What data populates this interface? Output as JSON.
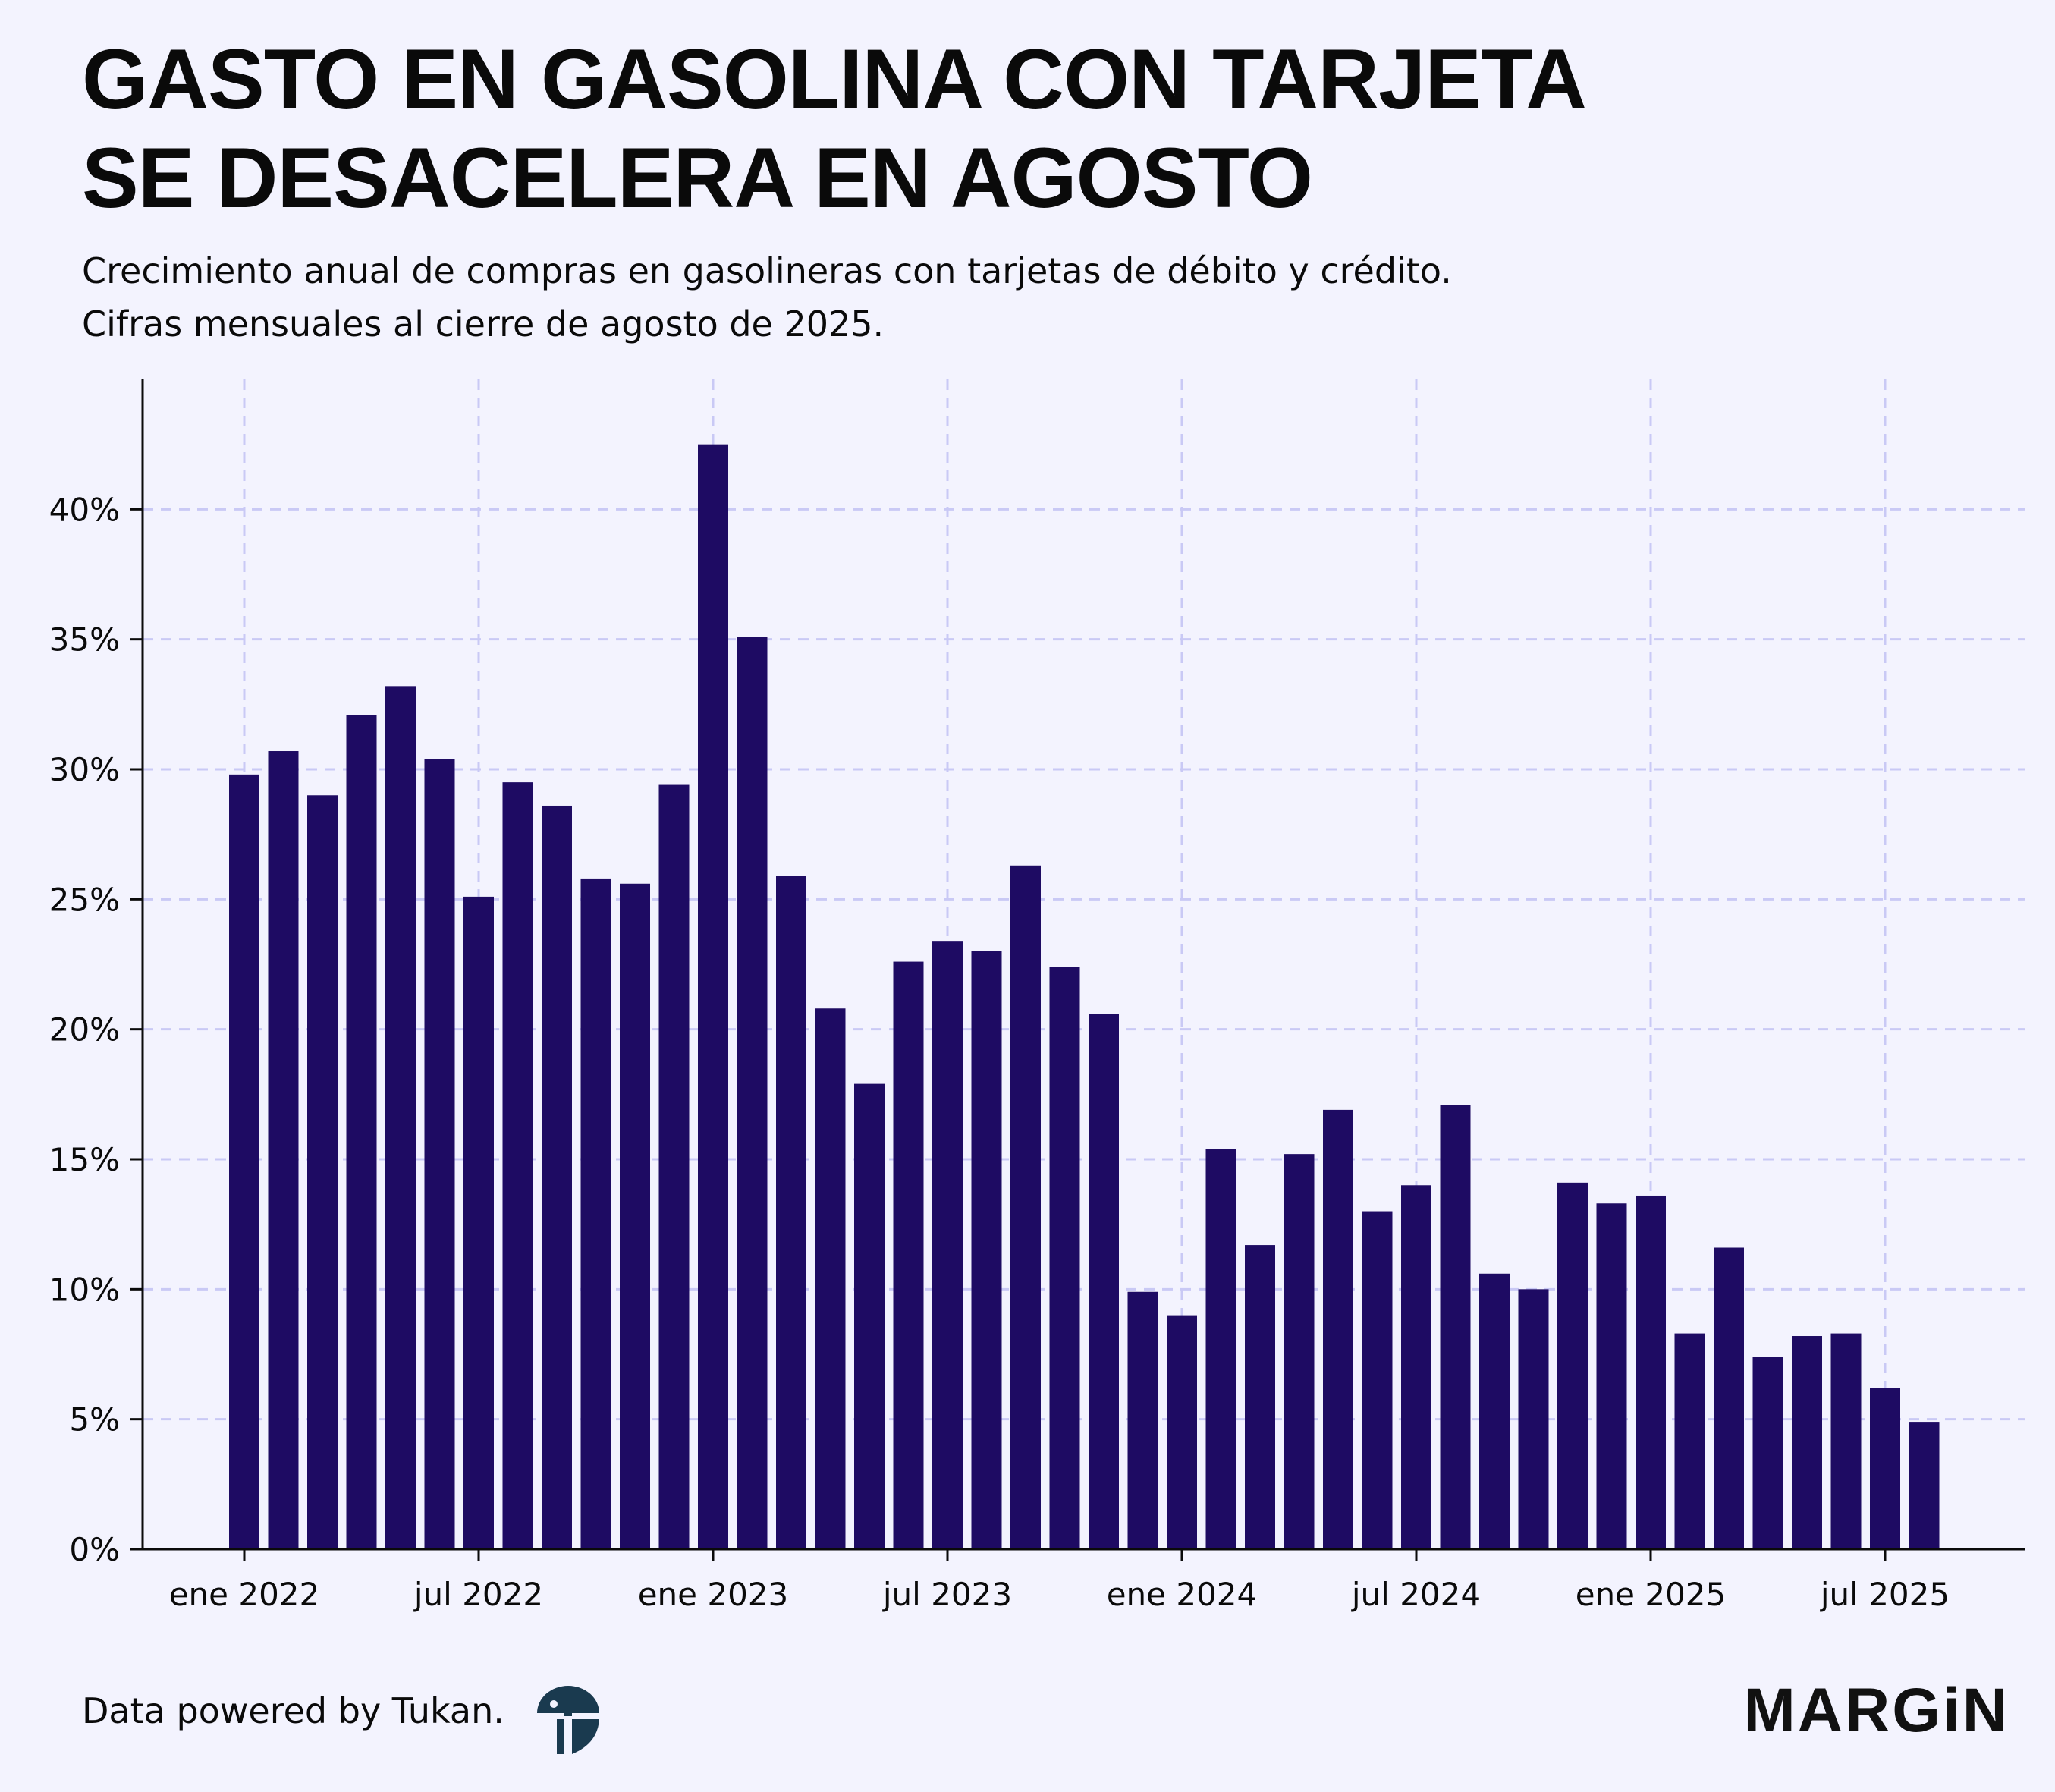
{
  "header": {
    "title_line1": "GASTO EN GASOLINA CON TARJETA",
    "title_line2": "SE DESACELERA EN AGOSTO",
    "subtitle_line1": "Crecimiento anual de compras en gasolineras con tarjetas de débito y crédito.",
    "subtitle_line2": "Cifras mensuales al cierre de agosto de 2025."
  },
  "footer": {
    "source": "Data powered by Tukan.",
    "brand": "MARGiN"
  },
  "colors": {
    "background": "#f3f3fe",
    "bar": "#1e0b63",
    "grid": "#c9c9f5",
    "axis": "#0a0a0a",
    "logo": "#1a3a4f"
  },
  "chart_data": {
    "type": "bar",
    "title": "GASTO EN GASOLINA CON TARJETA SE DESACELERA EN AGOSTO",
    "xlabel": "",
    "ylabel": "",
    "ylim": [
      0,
      45
    ],
    "grid": true,
    "categories": [
      "2022-01",
      "2022-02",
      "2022-03",
      "2022-04",
      "2022-05",
      "2022-06",
      "2022-07",
      "2022-08",
      "2022-09",
      "2022-10",
      "2022-11",
      "2022-12",
      "2023-01",
      "2023-02",
      "2023-03",
      "2023-04",
      "2023-05",
      "2023-06",
      "2023-07",
      "2023-08",
      "2023-09",
      "2023-10",
      "2023-11",
      "2023-12",
      "2024-01",
      "2024-02",
      "2024-03",
      "2024-04",
      "2024-05",
      "2024-06",
      "2024-07",
      "2024-08",
      "2024-09",
      "2024-10",
      "2024-11",
      "2024-12",
      "2025-01",
      "2025-02",
      "2025-03",
      "2025-04",
      "2025-05",
      "2025-06",
      "2025-07",
      "2025-08"
    ],
    "values": [
      29.8,
      30.7,
      29.0,
      32.1,
      33.2,
      30.4,
      25.1,
      29.5,
      28.6,
      25.8,
      25.6,
      29.4,
      42.5,
      35.1,
      25.9,
      20.8,
      17.9,
      22.6,
      23.4,
      23.0,
      26.3,
      22.4,
      20.6,
      9.9,
      9.0,
      15.4,
      11.7,
      15.2,
      16.9,
      13.0,
      14.0,
      17.1,
      10.6,
      10.0,
      14.1,
      13.3,
      13.6,
      8.3,
      11.6,
      7.4,
      8.2,
      8.3,
      6.2,
      4.9
    ],
    "yticks": [
      0,
      5,
      10,
      15,
      20,
      25,
      30,
      35,
      40
    ],
    "ytick_labels": [
      "0%",
      "5%",
      "10%",
      "15%",
      "20%",
      "25%",
      "30%",
      "35%",
      "40%"
    ],
    "xticks": [
      {
        "index": 0,
        "label": "ene 2022"
      },
      {
        "index": 6,
        "label": "jul 2022"
      },
      {
        "index": 12,
        "label": "ene 2023"
      },
      {
        "index": 18,
        "label": "jul 2023"
      },
      {
        "index": 24,
        "label": "ene 2024"
      },
      {
        "index": 30,
        "label": "jul 2024"
      },
      {
        "index": 36,
        "label": "ene 2025"
      },
      {
        "index": 42,
        "label": "jul 2025"
      }
    ]
  }
}
